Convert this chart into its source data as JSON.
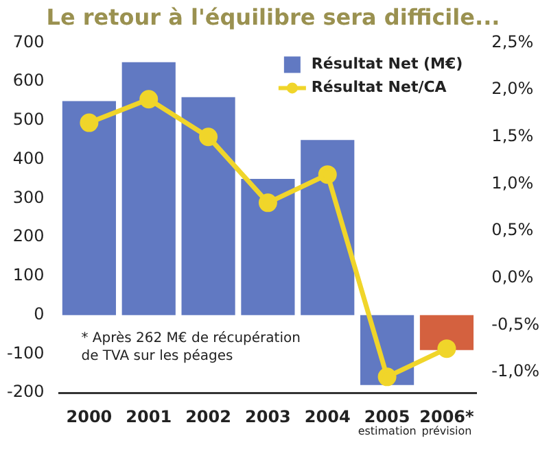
{
  "chart_data": {
    "type": "bar",
    "title": "Le retour à l'équilibre sera difficile...",
    "categories": [
      "2000",
      "2001",
      "2002",
      "2003",
      "2004",
      "2005\nestimation",
      "2006*\nprévision"
    ],
    "series": [
      {
        "name": "Résultat Net (M€)",
        "color": "#6179c2",
        "colors": [
          "#6179c2",
          "#6179c2",
          "#6179c2",
          "#6179c2",
          "#6179c2",
          "#6179c2",
          "#d4613f"
        ],
        "values": [
          550,
          650,
          560,
          350,
          450,
          -180,
          -90
        ]
      },
      {
        "name": "Résultat Net/CA",
        "type": "line",
        "axis": "y2",
        "color": "#f0d52a",
        "values": [
          1.65,
          1.9,
          1.5,
          0.8,
          1.1,
          -1.05,
          -0.75
        ]
      }
    ],
    "ylim": [
      -200,
      700
    ],
    "yticks": [
      -200,
      -100,
      0,
      100,
      200,
      300,
      400,
      500,
      600,
      700
    ],
    "y2lim": [
      -1.22,
      2.5
    ],
    "y2ticks": [
      {
        "value": -1,
        "label": "-1,0%"
      },
      {
        "value": -0.5,
        "label": "-0,5%"
      },
      {
        "value": 0,
        "label": "0,0%"
      },
      {
        "value": 0.5,
        "label": "0,5%"
      },
      {
        "value": 1,
        "label": "1,0%"
      },
      {
        "value": 1.5,
        "label": "1,5%"
      },
      {
        "value": 2,
        "label": "2,0%"
      },
      {
        "value": 2.5,
        "label": "2,5%"
      }
    ],
    "annotations": [
      "* Après 262 M€ de récupération\nde TVA sur les péages"
    ],
    "grid": false,
    "legend": "top right",
    "marker": "circle",
    "line_style": "solid"
  }
}
